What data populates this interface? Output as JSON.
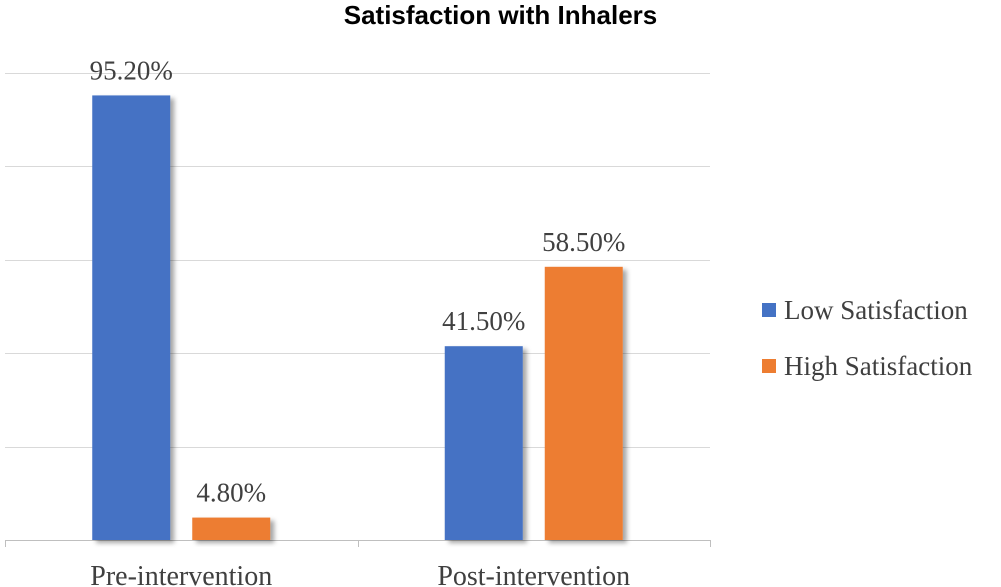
{
  "chart_data": {
    "type": "bar",
    "title": "Satisfaction with Inhalers",
    "categories": [
      "Pre-intervention",
      "Post-intervention"
    ],
    "series": [
      {
        "name": "Low Satisfaction",
        "values": [
          95.2,
          41.5
        ],
        "labels": [
          "95.20%",
          "41.50%"
        ],
        "color": "#4472C4"
      },
      {
        "name": "High Satisfaction",
        "values": [
          4.8,
          58.5
        ],
        "labels": [
          "4.80%",
          "58.50%"
        ],
        "color": "#ED7D31"
      }
    ],
    "xlabel": "",
    "ylabel": "",
    "ylim": [
      0,
      100
    ],
    "grid": true,
    "legend_position": "right"
  }
}
